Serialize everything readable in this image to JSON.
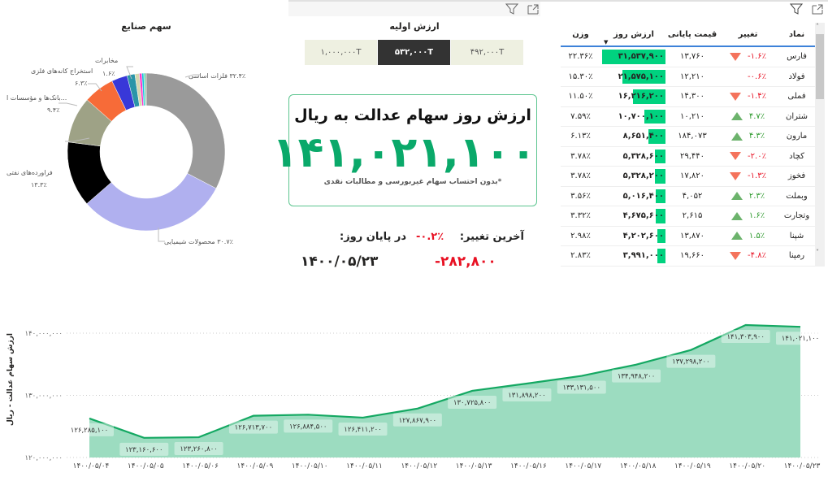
{
  "colors": {
    "accent": "#0aa96a",
    "negative": "#e81123",
    "positive": "#2e9a2e",
    "bar": "#00d27f",
    "area": "#9cdcc0",
    "line": "#14a862"
  },
  "icons": [
    "filter-icon",
    "focus-mode-icon"
  ],
  "pie": {
    "title": "سهم صنایع",
    "slices": [
      {
        "name": "فلزات اساسی",
        "value": 32.4,
        "label": "۳۲.۴٪ فلزات اساسی",
        "color": "#9a9a9a"
      },
      {
        "name": "محصولات شیمیایی",
        "value": 30.7,
        "label": "۳۰.۷٪ محصولات شیمیایی",
        "color": "#b0b0ef"
      },
      {
        "name": "فراورده‌های نفتی",
        "value": 13.3,
        "label": "فراورده‌های نفتی",
        "pct": "۱۳.۳٪",
        "color": "#000000"
      },
      {
        "name": "...بانک‌ها و مؤسسات ا",
        "value": 9.4,
        "label": "...بانک‌ها و مؤسسات ا",
        "pct": "۹.۴٪",
        "color": "#9ea286"
      },
      {
        "name": "استخراج کانه‌های فلزی",
        "value": 6.3,
        "label": "استخراج کانه‌های فلزی",
        "pct": "۶.۳٪",
        "color": "#f76b38"
      },
      {
        "value": 3.2,
        "color": "#3838d8"
      },
      {
        "name": "مخابرات",
        "value": 1.6,
        "label": "مخابرات",
        "pct": "۱.۶٪",
        "color": "#2a95a8"
      },
      {
        "value": 0.9,
        "color": "#d4d8b0"
      },
      {
        "value": 0.5,
        "color": "#ff33cc"
      },
      {
        "value": 0.4,
        "color": "#18c0e0"
      },
      {
        "value": 0.3,
        "color": "#3ee6a0"
      },
      {
        "value": 0.2,
        "color": "#888888"
      }
    ]
  },
  "initial": {
    "title": "ارزش اولیه",
    "options": [
      "۱,۰۰۰,۰۰۰T",
      "۵۳۲,۰۰۰T",
      "۴۹۲,۰۰۰T"
    ],
    "selected": "۵۳۲,۰۰۰T"
  },
  "card": {
    "title": "ارزش روز سهام عدالت به ریال",
    "value": "۱۴۱,۰۲۱,۱۰۰",
    "note": "*بدون احتساب سهام غیربورسی و مطالبات نقدی"
  },
  "change": {
    "label": "آخرین تغییر:",
    "pct": "-۰.۲٪",
    "amount": "-۲۸۲,۸۰۰",
    "end_label": "در پایان روز:",
    "date": "۱۴۰۰/۰۵/۲۳"
  },
  "table": {
    "headers": {
      "symbol": "نماد",
      "change": "تغییر",
      "close": "قیمت پایانی",
      "value": "ارزش روز",
      "weight": "وزن"
    },
    "sort": "value-desc",
    "rows": [
      {
        "symbol": "فارس",
        "change": "-۱.۶٪",
        "trend": "down",
        "close": "۱۳,۷۶۰",
        "value": "۳۱,۵۳۷,۹۰۰",
        "value_num": 31537900,
        "weight": "۲۲.۳۶٪"
      },
      {
        "symbol": "فولاد",
        "change": "-۰.۶٪",
        "trend": "none",
        "close": "۱۲,۲۱۰",
        "value": "۲۱,۵۷۵,۱۰۰",
        "value_num": 21575100,
        "weight": "۱۵.۳۰٪"
      },
      {
        "symbol": "فملی",
        "change": "-۱.۴٪",
        "trend": "down",
        "close": "۱۴,۳۰۰",
        "value": "۱۶,۲۱۶,۲۰۰",
        "value_num": 16216200,
        "weight": "۱۱.۵۰٪"
      },
      {
        "symbol": "شتران",
        "change": "۴.۷٪",
        "trend": "up",
        "close": "۱۰,۲۱۰",
        "value": "۱۰,۷۰۰,۱۰۰",
        "value_num": 10700100,
        "weight": "۷.۵۹٪"
      },
      {
        "symbol": "مارون",
        "change": "۴.۳٪",
        "trend": "up",
        "close": "۱۸۴,۰۷۳",
        "value": "۸,۶۵۱,۴۰۰",
        "value_num": 8651400,
        "weight": "۶.۱۳٪"
      },
      {
        "symbol": "کچاد",
        "change": "-۲.۰٪",
        "trend": "down",
        "close": "۲۹,۴۴۰",
        "value": "۵,۳۲۸,۶۰۰",
        "value_num": 5328600,
        "weight": "۳.۷۸٪"
      },
      {
        "symbol": "فخوز",
        "change": "-۱.۳٪",
        "trend": "down",
        "close": "۱۷,۸۲۰",
        "value": "۵,۳۲۸,۲۰۰",
        "value_num": 5328200,
        "weight": "۳.۷۸٪"
      },
      {
        "symbol": "وبملت",
        "change": "۲.۳٪",
        "trend": "up",
        "close": "۴,۰۵۲",
        "value": "۵,۰۱۶,۴۰۰",
        "value_num": 5016400,
        "weight": "۳.۵۶٪"
      },
      {
        "symbol": "وتجارت",
        "change": "۱.۶٪",
        "trend": "up",
        "close": "۲,۶۱۵",
        "value": "۴,۶۷۵,۶۰۰",
        "value_num": 4675600,
        "weight": "۳.۳۲٪"
      },
      {
        "symbol": "شپنا",
        "change": "۱.۵٪",
        "trend": "up",
        "close": "۱۳,۸۷۰",
        "value": "۴,۲۰۲,۶۰۰",
        "value_num": 4202600,
        "weight": "۲.۹۸٪"
      },
      {
        "symbol": "رمپنا",
        "change": "-۴.۸٪",
        "trend": "down",
        "close": "۱۹,۶۶۰",
        "value": "۳,۹۹۱,۰۰۰",
        "value_num": 3991000,
        "weight": "۲.۸۳٪"
      }
    ]
  },
  "chart_data": {
    "type": "area",
    "ylabel": "ارزش سهام عدالت - ریال",
    "ylim": [
      120000000,
      140000000
    ],
    "yticks": [
      {
        "v": 140000000,
        "label": "۱۴۰,۰۰۰,۰۰۰"
      },
      {
        "v": 130000000,
        "label": "۱۳۰,۰۰۰,۰۰۰"
      },
      {
        "v": 120000000,
        "label": "۱۲۰,۰۰۰,۰۰۰"
      }
    ],
    "grid": true,
    "x": [
      "۱۴۰۰/۰۵/۰۴",
      "۱۴۰۰/۰۵/۰۵",
      "۱۴۰۰/۰۵/۰۶",
      "۱۴۰۰/۰۵/۰۹",
      "۱۴۰۰/۰۵/۱۰",
      "۱۴۰۰/۰۵/۱۱",
      "۱۴۰۰/۰۵/۱۲",
      "۱۴۰۰/۰۵/۱۳",
      "۱۴۰۰/۰۵/۱۶",
      "۱۴۰۰/۰۵/۱۷",
      "۱۴۰۰/۰۵/۱۸",
      "۱۴۰۰/۰۵/۱۹",
      "۱۴۰۰/۰۵/۲۰",
      "۱۴۰۰/۰۵/۲۳"
    ],
    "values": [
      126285100,
      123160600,
      123260800,
      126713700,
      126884500,
      126411200,
      127867900,
      130725800,
      131898200,
      133131500,
      134948200,
      137298200,
      141303900,
      141021100
    ],
    "labels": [
      "۱۲۶,۲۸۵,۱۰۰",
      "۱۲۳,۱۶۰,۶۰۰",
      "۱۲۳,۲۶۰,۸۰۰",
      "۱۲۶,۷۱۳,۷۰۰",
      "۱۲۶,۸۸۴,۵۰۰",
      "۱۲۶,۴۱۱,۲۰۰",
      "۱۲۷,۸۶۷,۹۰۰",
      "۱۳۰,۷۲۵,۸۰۰",
      "۱۳۱,۸۹۸,۲۰۰",
      "۱۳۳,۱۳۱,۵۰۰",
      "۱۳۴,۹۴۸,۲۰۰",
      "۱۳۷,۲۹۸,۲۰۰",
      "۱۴۱,۳۰۳,۹۰۰",
      "۱۴۱,۰۲۱,۱۰۰"
    ]
  }
}
